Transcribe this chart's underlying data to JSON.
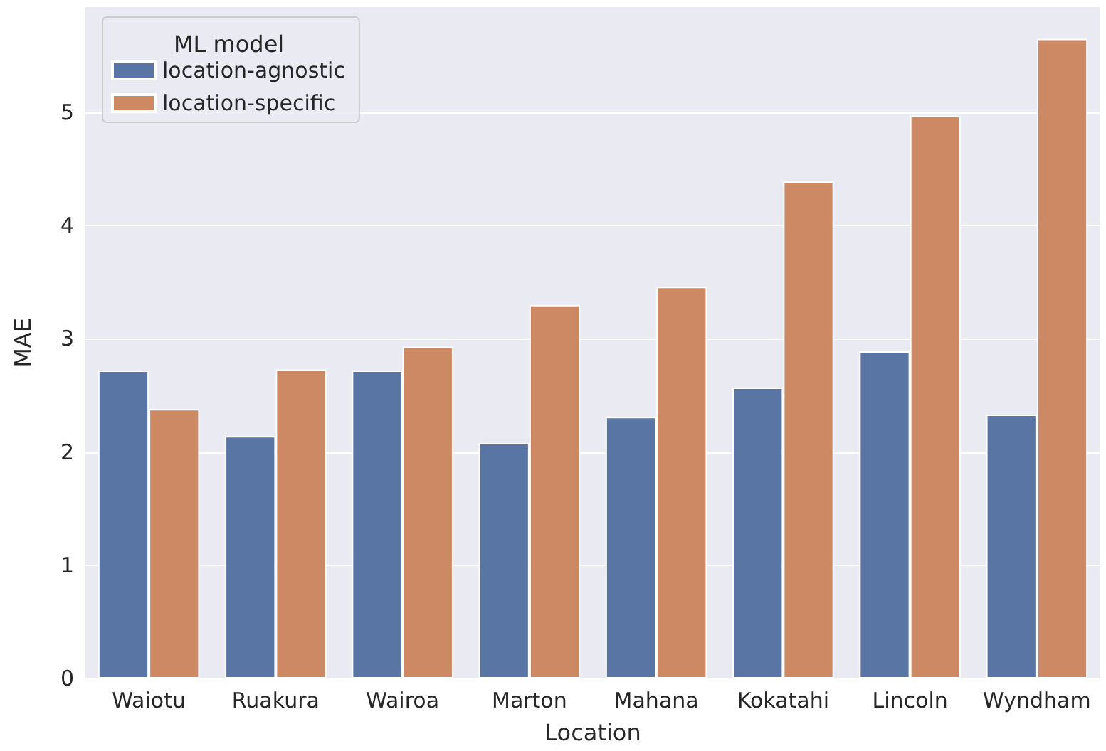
{
  "chart_data": {
    "type": "bar",
    "xlabel": "Location",
    "ylabel": "MAE",
    "legend_title": "ML model",
    "categories": [
      "Waiotu",
      "Ruakura",
      "Wairoa",
      "Marton",
      "Mahana",
      "Kokatahi",
      "Lincoln",
      "Wyndham"
    ],
    "series": [
      {
        "name": "location-agnostic",
        "color": "#5875a4",
        "values": [
          2.72,
          2.14,
          2.72,
          2.08,
          2.31,
          2.57,
          2.89,
          2.33
        ]
      },
      {
        "name": "location-specific",
        "color": "#cc8963",
        "values": [
          2.38,
          2.73,
          2.93,
          3.3,
          3.46,
          4.39,
          4.97,
          5.65
        ]
      }
    ],
    "ylim": [
      0,
      5.93
    ],
    "yticks": [
      0,
      1,
      2,
      3,
      4,
      5
    ],
    "grid": "y",
    "legend": "top left"
  }
}
